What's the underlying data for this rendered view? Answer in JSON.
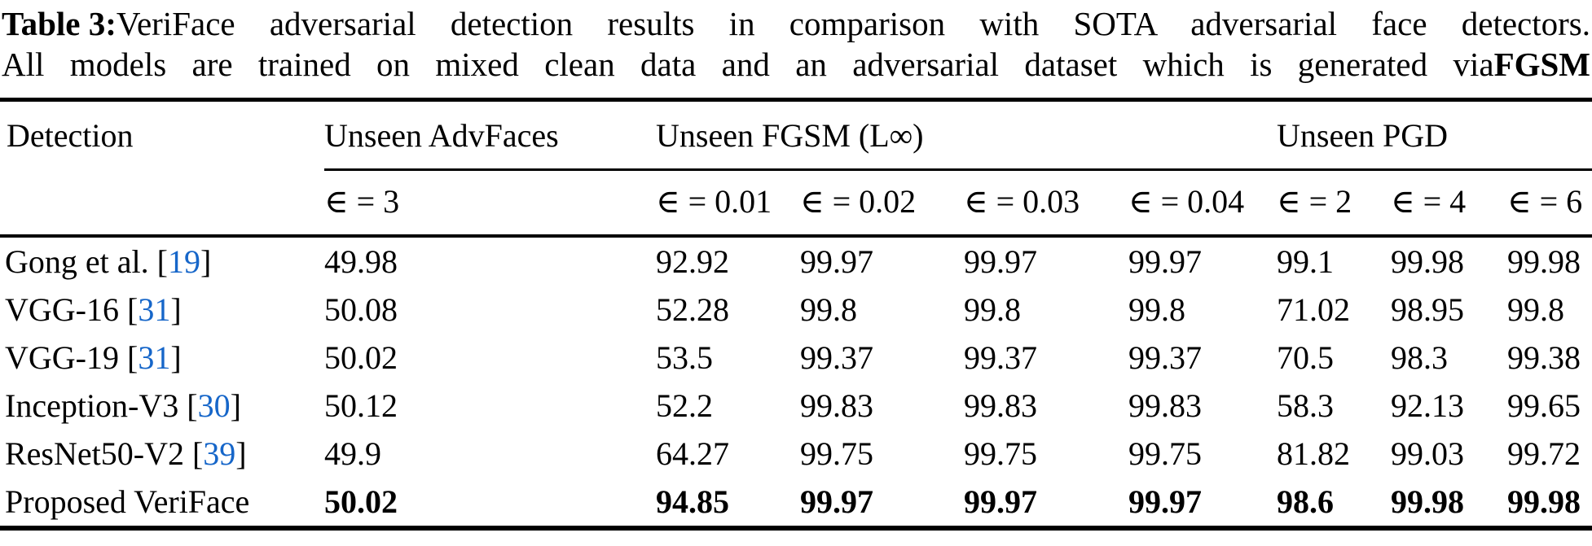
{
  "caption": {
    "tag": "Table 3:",
    "line1_rest": "VeriFace adversarial detection results in comparison with SOTA adversarial face detectors.",
    "line2_prefix": "All models are trained on mixed clean data and an adversarial dataset which is generated via",
    "line2_bold": "FGSM"
  },
  "table": {
    "detection_header": "Detection",
    "groups": {
      "advfaces": "Unseen AdvFaces",
      "fgsm": "Unseen FGSM (L∞)",
      "pgd": "Unseen PGD"
    },
    "sub_headers": [
      "∈ = 3",
      "∈ = 0.01",
      "∈ = 0.02",
      "∈ = 0.03",
      "∈ = 0.04",
      "∈ = 2",
      "∈ = 4",
      "∈ = 6"
    ],
    "rows": [
      {
        "label": "Gong et al.",
        "cite": "19",
        "values": [
          "49.98",
          "92.92",
          "99.97",
          "99.97",
          "99.97",
          "99.1",
          "99.98",
          "99.98"
        ]
      },
      {
        "label": "VGG-16",
        "cite": "31",
        "values": [
          "50.08",
          "52.28",
          "99.8",
          "99.8",
          "99.8",
          "71.02",
          "98.95",
          "99.8"
        ]
      },
      {
        "label": "VGG-19",
        "cite": "31",
        "values": [
          "50.02",
          "53.5",
          "99.37",
          "99.37",
          "99.37",
          "70.5",
          "98.3",
          "99.38"
        ]
      },
      {
        "label": "Inception-V3",
        "cite": "30",
        "values": [
          "50.12",
          "52.2",
          "99.83",
          "99.83",
          "99.83",
          "58.3",
          "92.13",
          "99.65"
        ]
      },
      {
        "label": "ResNet50-V2",
        "cite": "39",
        "values": [
          "49.9",
          "64.27",
          "99.75",
          "99.75",
          "99.75",
          "81.82",
          "99.03",
          "99.72"
        ]
      },
      {
        "label": "Proposed VeriFace",
        "cite": "",
        "values": [
          "50.02",
          "94.85",
          "99.97",
          "99.97",
          "99.97",
          "98.6",
          "99.98",
          "99.98"
        ]
      }
    ],
    "link_color": "#1666C9"
  }
}
